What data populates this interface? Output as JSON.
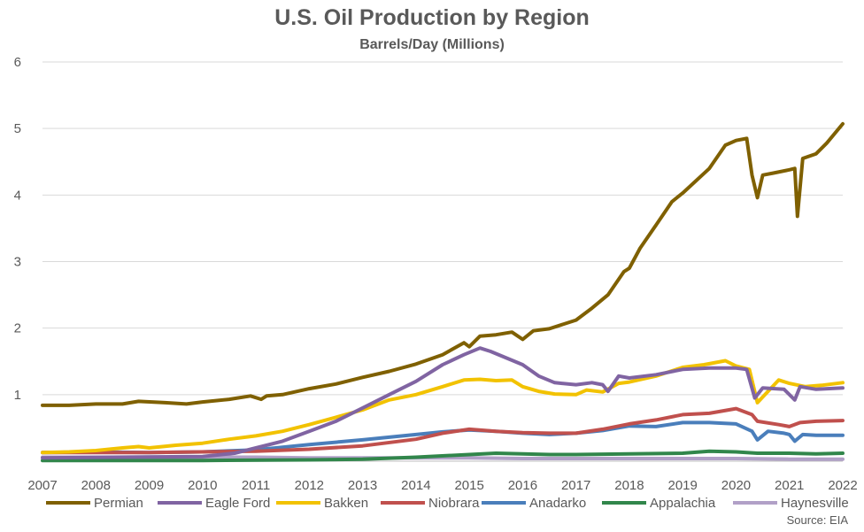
{
  "chart_data": {
    "type": "line",
    "title": "U.S. Oil Production by Region",
    "subtitle": "Barrels/Day (Millions)",
    "xlabel": "",
    "ylabel": "",
    "ylim": [
      0,
      6
    ],
    "xlim": [
      2007,
      2022
    ],
    "y_ticks": [
      "",
      "1",
      "2",
      "3",
      "4",
      "5",
      "6"
    ],
    "x_ticks": [
      "2007",
      "2008",
      "2009",
      "2010",
      "2011",
      "2012",
      "2013",
      "2014",
      "2015",
      "2016",
      "2017",
      "2018",
      "2019",
      "2020",
      "2021",
      "2022"
    ],
    "grid": true,
    "legend_position": "bottom",
    "source": "Source: EIA",
    "series": [
      {
        "name": "Permian",
        "color": "#7F6000",
        "points": [
          [
            2007.0,
            0.84
          ],
          [
            2007.5,
            0.84
          ],
          [
            2008.0,
            0.86
          ],
          [
            2008.5,
            0.86
          ],
          [
            2008.8,
            0.9
          ],
          [
            2009.3,
            0.88
          ],
          [
            2009.7,
            0.86
          ],
          [
            2010.0,
            0.89
          ],
          [
            2010.5,
            0.93
          ],
          [
            2010.9,
            0.98
          ],
          [
            2011.1,
            0.93
          ],
          [
            2011.2,
            0.98
          ],
          [
            2011.5,
            1.0
          ],
          [
            2012.0,
            1.09
          ],
          [
            2012.5,
            1.16
          ],
          [
            2013.0,
            1.26
          ],
          [
            2013.5,
            1.35
          ],
          [
            2014.0,
            1.46
          ],
          [
            2014.5,
            1.6
          ],
          [
            2014.9,
            1.78
          ],
          [
            2015.0,
            1.72
          ],
          [
            2015.2,
            1.88
          ],
          [
            2015.5,
            1.9
          ],
          [
            2015.8,
            1.94
          ],
          [
            2016.0,
            1.83
          ],
          [
            2016.2,
            1.96
          ],
          [
            2016.5,
            1.99
          ],
          [
            2017.0,
            2.12
          ],
          [
            2017.3,
            2.3
          ],
          [
            2017.6,
            2.5
          ],
          [
            2017.9,
            2.85
          ],
          [
            2018.0,
            2.9
          ],
          [
            2018.2,
            3.2
          ],
          [
            2018.5,
            3.55
          ],
          [
            2018.8,
            3.9
          ],
          [
            2019.0,
            4.03
          ],
          [
            2019.5,
            4.4
          ],
          [
            2019.8,
            4.75
          ],
          [
            2020.0,
            4.82
          ],
          [
            2020.2,
            4.85
          ],
          [
            2020.3,
            4.3
          ],
          [
            2020.4,
            3.96
          ],
          [
            2020.5,
            4.3
          ],
          [
            2020.7,
            4.33
          ],
          [
            2021.0,
            4.38
          ],
          [
            2021.1,
            4.4
          ],
          [
            2021.15,
            3.68
          ],
          [
            2021.25,
            4.55
          ],
          [
            2021.5,
            4.62
          ],
          [
            2021.7,
            4.78
          ],
          [
            2022.0,
            5.07
          ]
        ]
      },
      {
        "name": "Eagle Ford",
        "color": "#8064A2",
        "points": [
          [
            2007.0,
            0.05
          ],
          [
            2010.0,
            0.07
          ],
          [
            2010.6,
            0.12
          ],
          [
            2011.0,
            0.2
          ],
          [
            2011.5,
            0.3
          ],
          [
            2012.0,
            0.45
          ],
          [
            2012.5,
            0.6
          ],
          [
            2013.0,
            0.8
          ],
          [
            2013.5,
            1.0
          ],
          [
            2014.0,
            1.2
          ],
          [
            2014.5,
            1.45
          ],
          [
            2014.9,
            1.6
          ],
          [
            2015.2,
            1.7
          ],
          [
            2015.4,
            1.65
          ],
          [
            2015.7,
            1.55
          ],
          [
            2016.0,
            1.45
          ],
          [
            2016.3,
            1.28
          ],
          [
            2016.6,
            1.18
          ],
          [
            2017.0,
            1.15
          ],
          [
            2017.3,
            1.18
          ],
          [
            2017.5,
            1.15
          ],
          [
            2017.6,
            1.05
          ],
          [
            2017.8,
            1.28
          ],
          [
            2018.0,
            1.25
          ],
          [
            2018.5,
            1.3
          ],
          [
            2019.0,
            1.38
          ],
          [
            2019.5,
            1.4
          ],
          [
            2020.0,
            1.4
          ],
          [
            2020.2,
            1.38
          ],
          [
            2020.35,
            0.95
          ],
          [
            2020.5,
            1.1
          ],
          [
            2020.9,
            1.08
          ],
          [
            2021.1,
            0.92
          ],
          [
            2021.2,
            1.12
          ],
          [
            2021.5,
            1.08
          ],
          [
            2022.0,
            1.1
          ]
        ]
      },
      {
        "name": "Bakken",
        "color": "#F2C200",
        "points": [
          [
            2007.0,
            0.13
          ],
          [
            2007.5,
            0.14
          ],
          [
            2008.0,
            0.16
          ],
          [
            2008.5,
            0.2
          ],
          [
            2008.8,
            0.22
          ],
          [
            2009.0,
            0.2
          ],
          [
            2009.5,
            0.24
          ],
          [
            2010.0,
            0.27
          ],
          [
            2010.5,
            0.33
          ],
          [
            2011.0,
            0.38
          ],
          [
            2011.5,
            0.45
          ],
          [
            2012.0,
            0.55
          ],
          [
            2012.5,
            0.66
          ],
          [
            2013.0,
            0.77
          ],
          [
            2013.5,
            0.92
          ],
          [
            2014.0,
            1.0
          ],
          [
            2014.5,
            1.12
          ],
          [
            2014.9,
            1.22
          ],
          [
            2015.2,
            1.23
          ],
          [
            2015.5,
            1.21
          ],
          [
            2015.8,
            1.22
          ],
          [
            2016.0,
            1.12
          ],
          [
            2016.3,
            1.05
          ],
          [
            2016.6,
            1.01
          ],
          [
            2017.0,
            1.0
          ],
          [
            2017.2,
            1.07
          ],
          [
            2017.5,
            1.04
          ],
          [
            2017.8,
            1.17
          ],
          [
            2018.0,
            1.19
          ],
          [
            2018.5,
            1.28
          ],
          [
            2019.0,
            1.41
          ],
          [
            2019.4,
            1.45
          ],
          [
            2019.8,
            1.51
          ],
          [
            2020.0,
            1.43
          ],
          [
            2020.25,
            1.38
          ],
          [
            2020.4,
            0.88
          ],
          [
            2020.6,
            1.05
          ],
          [
            2020.8,
            1.22
          ],
          [
            2021.0,
            1.17
          ],
          [
            2021.3,
            1.12
          ],
          [
            2021.6,
            1.14
          ],
          [
            2022.0,
            1.18
          ]
        ]
      },
      {
        "name": "Niobrara",
        "color": "#C0504D",
        "points": [
          [
            2007.0,
            0.13
          ],
          [
            2009.0,
            0.13
          ],
          [
            2011.0,
            0.15
          ],
          [
            2012.0,
            0.18
          ],
          [
            2013.0,
            0.23
          ],
          [
            2014.0,
            0.33
          ],
          [
            2014.5,
            0.42
          ],
          [
            2015.0,
            0.48
          ],
          [
            2015.5,
            0.45
          ],
          [
            2016.0,
            0.43
          ],
          [
            2016.5,
            0.42
          ],
          [
            2017.0,
            0.42
          ],
          [
            2017.5,
            0.48
          ],
          [
            2018.0,
            0.56
          ],
          [
            2018.5,
            0.62
          ],
          [
            2019.0,
            0.7
          ],
          [
            2019.5,
            0.72
          ],
          [
            2020.0,
            0.79
          ],
          [
            2020.3,
            0.7
          ],
          [
            2020.4,
            0.6
          ],
          [
            2020.8,
            0.55
          ],
          [
            2021.0,
            0.52
          ],
          [
            2021.2,
            0.58
          ],
          [
            2021.5,
            0.6
          ],
          [
            2022.0,
            0.61
          ]
        ]
      },
      {
        "name": "Anadarko",
        "color": "#4A7EBB",
        "points": [
          [
            2007.0,
            0.13
          ],
          [
            2008.0,
            0.14
          ],
          [
            2009.0,
            0.13
          ],
          [
            2010.0,
            0.14
          ],
          [
            2011.0,
            0.17
          ],
          [
            2012.0,
            0.25
          ],
          [
            2013.0,
            0.32
          ],
          [
            2013.5,
            0.36
          ],
          [
            2014.0,
            0.4
          ],
          [
            2014.5,
            0.44
          ],
          [
            2015.0,
            0.47
          ],
          [
            2015.5,
            0.45
          ],
          [
            2016.0,
            0.42
          ],
          [
            2016.5,
            0.4
          ],
          [
            2017.0,
            0.42
          ],
          [
            2017.5,
            0.46
          ],
          [
            2018.0,
            0.53
          ],
          [
            2018.5,
            0.52
          ],
          [
            2019.0,
            0.58
          ],
          [
            2019.5,
            0.58
          ],
          [
            2020.0,
            0.56
          ],
          [
            2020.3,
            0.45
          ],
          [
            2020.4,
            0.32
          ],
          [
            2020.6,
            0.45
          ],
          [
            2020.9,
            0.42
          ],
          [
            2021.0,
            0.4
          ],
          [
            2021.1,
            0.3
          ],
          [
            2021.25,
            0.4
          ],
          [
            2021.5,
            0.39
          ],
          [
            2022.0,
            0.39
          ]
        ]
      },
      {
        "name": "Appalachia",
        "color": "#31864B",
        "points": [
          [
            2007.0,
            0.01
          ],
          [
            2010.0,
            0.01
          ],
          [
            2012.0,
            0.02
          ],
          [
            2013.0,
            0.03
          ],
          [
            2014.0,
            0.06
          ],
          [
            2015.0,
            0.1
          ],
          [
            2015.5,
            0.12
          ],
          [
            2016.0,
            0.11
          ],
          [
            2016.5,
            0.1
          ],
          [
            2017.0,
            0.1
          ],
          [
            2018.0,
            0.11
          ],
          [
            2019.0,
            0.12
          ],
          [
            2019.5,
            0.15
          ],
          [
            2020.0,
            0.14
          ],
          [
            2020.4,
            0.12
          ],
          [
            2021.0,
            0.12
          ],
          [
            2021.5,
            0.11
          ],
          [
            2022.0,
            0.12
          ]
        ]
      },
      {
        "name": "Haynesville",
        "color": "#B1A0C7",
        "points": [
          [
            2007.0,
            0.06
          ],
          [
            2009.0,
            0.06
          ],
          [
            2011.0,
            0.06
          ],
          [
            2012.0,
            0.05
          ],
          [
            2013.0,
            0.05
          ],
          [
            2014.0,
            0.05
          ],
          [
            2015.0,
            0.05
          ],
          [
            2016.0,
            0.04
          ],
          [
            2017.0,
            0.04
          ],
          [
            2018.0,
            0.04
          ],
          [
            2019.0,
            0.04
          ],
          [
            2020.0,
            0.04
          ],
          [
            2021.0,
            0.03
          ],
          [
            2022.0,
            0.03
          ]
        ]
      }
    ]
  }
}
